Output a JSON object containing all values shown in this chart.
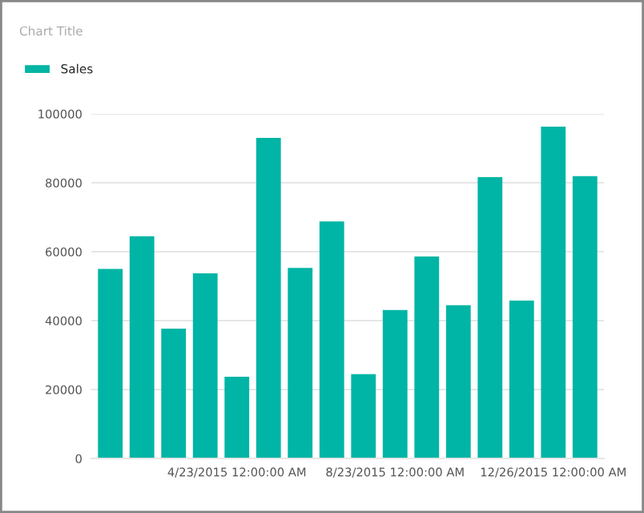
{
  "chart_data": {
    "type": "bar",
    "title": "Chart Title",
    "categories": [
      null,
      null,
      null,
      null,
      "4/23/2015 12:00:00 AM",
      null,
      null,
      null,
      null,
      "8/23/2015 12:00:00 AM",
      null,
      null,
      null,
      null,
      "12/26/2015 12:00:00 AM",
      null
    ],
    "series": [
      {
        "name": "Sales",
        "color": "#00b5a5",
        "values": [
          55000,
          64500,
          37700,
          53700,
          23700,
          93000,
          55300,
          68800,
          24500,
          43100,
          58600,
          44500,
          81600,
          45800,
          96300,
          81900
        ]
      }
    ],
    "ylim": [
      0,
      100000
    ],
    "yticks": [
      0,
      20000,
      40000,
      60000,
      80000,
      100000
    ],
    "grid": "y",
    "legend": "top left"
  }
}
